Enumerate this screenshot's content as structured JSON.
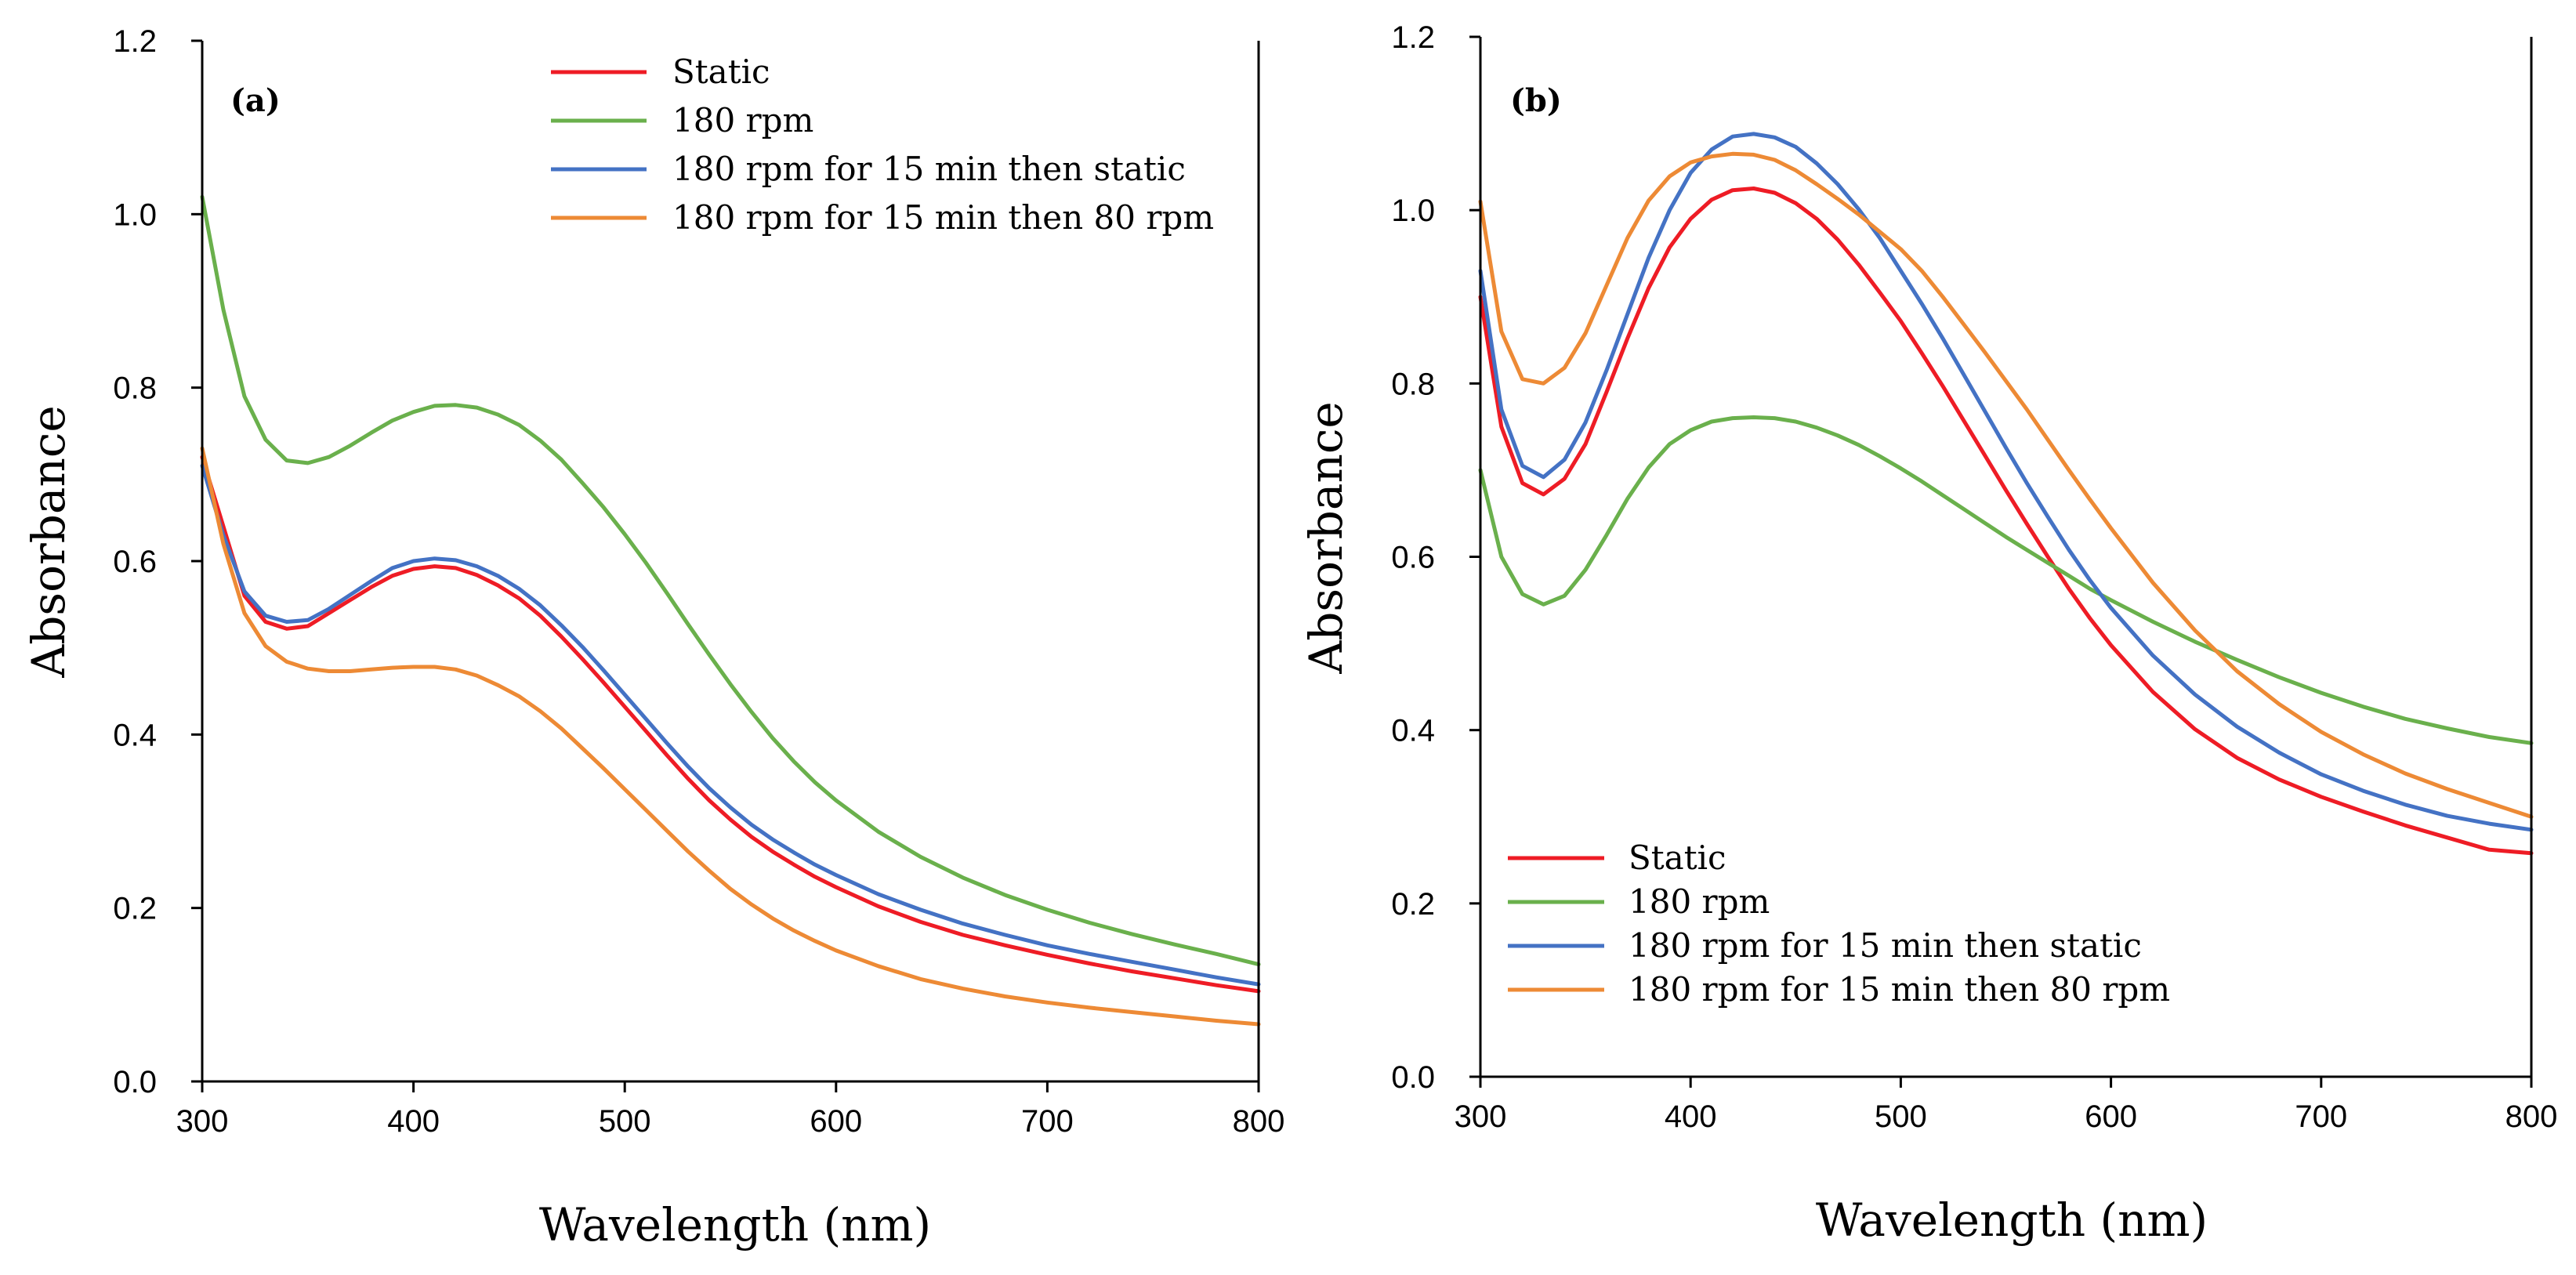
{
  "chart_data": [
    {
      "type": "line",
      "panel_label": "(a)",
      "xlabel": "Wavelength (nm)",
      "ylabel": "Absorbance",
      "xlim": [
        300,
        800
      ],
      "ylim": [
        0.0,
        1.2
      ],
      "xticks": [
        300,
        400,
        500,
        600,
        700,
        800
      ],
      "xtick_labels": [
        "300",
        "400",
        "500",
        "600",
        "700",
        "800"
      ],
      "yticks": [
        0.0,
        0.2,
        0.4,
        0.6,
        0.8,
        1.0,
        1.2
      ],
      "ytick_labels": [
        "0.0",
        "0.2",
        "0.4",
        "0.6",
        "0.8",
        "1.0",
        "1.2"
      ],
      "grid": false,
      "legend_position": "top-right",
      "x": [
        300,
        310,
        320,
        330,
        340,
        350,
        360,
        370,
        380,
        390,
        400,
        410,
        420,
        430,
        440,
        450,
        460,
        470,
        480,
        490,
        500,
        510,
        520,
        530,
        540,
        550,
        560,
        570,
        580,
        590,
        600,
        620,
        640,
        660,
        680,
        700,
        720,
        740,
        760,
        780,
        800
      ],
      "series": [
        {
          "name": "Static",
          "color": "#ee1c25",
          "values": [
            0.72,
            0.64,
            0.56,
            0.53,
            0.522,
            0.525,
            0.54,
            0.555,
            0.57,
            0.583,
            0.591,
            0.594,
            0.592,
            0.584,
            0.572,
            0.557,
            0.537,
            0.513,
            0.487,
            0.46,
            0.432,
            0.404,
            0.376,
            0.349,
            0.324,
            0.302,
            0.282,
            0.265,
            0.25,
            0.236,
            0.224,
            0.202,
            0.184,
            0.169,
            0.157,
            0.146,
            0.136,
            0.127,
            0.119,
            0.111,
            0.104
          ]
        },
        {
          "name": "180 rpm",
          "color": "#6ab04c",
          "values": [
            1.02,
            0.89,
            0.79,
            0.74,
            0.716,
            0.713,
            0.72,
            0.733,
            0.748,
            0.762,
            0.772,
            0.779,
            0.78,
            0.777,
            0.769,
            0.757,
            0.739,
            0.717,
            0.69,
            0.662,
            0.631,
            0.598,
            0.563,
            0.527,
            0.492,
            0.458,
            0.426,
            0.396,
            0.369,
            0.345,
            0.324,
            0.288,
            0.259,
            0.235,
            0.215,
            0.198,
            0.183,
            0.17,
            0.158,
            0.147,
            0.135
          ]
        },
        {
          "name": "180 rpm for 15 min then static",
          "color": "#4472c4",
          "values": [
            0.71,
            0.63,
            0.565,
            0.537,
            0.53,
            0.532,
            0.545,
            0.561,
            0.577,
            0.592,
            0.6,
            0.603,
            0.601,
            0.594,
            0.583,
            0.568,
            0.549,
            0.526,
            0.501,
            0.474,
            0.446,
            0.418,
            0.39,
            0.363,
            0.338,
            0.316,
            0.296,
            0.279,
            0.264,
            0.25,
            0.238,
            0.216,
            0.198,
            0.182,
            0.169,
            0.157,
            0.147,
            0.138,
            0.129,
            0.12,
            0.112
          ]
        },
        {
          "name": "180 rpm for 15 min then 80 rpm",
          "color": "#ed8a35",
          "values": [
            0.73,
            0.62,
            0.54,
            0.502,
            0.484,
            0.476,
            0.473,
            0.473,
            0.475,
            0.477,
            0.478,
            0.478,
            0.475,
            0.468,
            0.457,
            0.444,
            0.427,
            0.407,
            0.384,
            0.361,
            0.337,
            0.313,
            0.289,
            0.265,
            0.243,
            0.222,
            0.204,
            0.188,
            0.174,
            0.162,
            0.151,
            0.133,
            0.118,
            0.107,
            0.098,
            0.091,
            0.085,
            0.08,
            0.075,
            0.07,
            0.066
          ]
        }
      ]
    },
    {
      "type": "line",
      "panel_label": "(b)",
      "xlabel": "Wavelength (nm)",
      "ylabel": "Absorbance",
      "xlim": [
        300,
        800
      ],
      "ylim": [
        0.0,
        1.2
      ],
      "xticks": [
        300,
        400,
        500,
        600,
        700,
        800
      ],
      "xtick_labels": [
        "300",
        "400",
        "500",
        "600",
        "700",
        "800"
      ],
      "yticks": [
        0.0,
        0.2,
        0.4,
        0.6,
        0.8,
        1.0,
        1.2
      ],
      "ytick_labels": [
        "0.0",
        "0.2",
        "0.4",
        "0.6",
        "0.8",
        "1.0",
        "1.2"
      ],
      "grid": false,
      "legend_position": "bottom-left",
      "x": [
        300,
        310,
        320,
        330,
        340,
        350,
        360,
        370,
        380,
        390,
        400,
        410,
        420,
        430,
        440,
        450,
        460,
        470,
        480,
        490,
        500,
        510,
        520,
        530,
        540,
        550,
        560,
        570,
        580,
        590,
        600,
        620,
        640,
        660,
        680,
        700,
        720,
        740,
        760,
        780,
        800
      ],
      "series": [
        {
          "name": "Static",
          "color": "#ee1c25",
          "values": [
            0.9,
            0.75,
            0.685,
            0.672,
            0.69,
            0.73,
            0.79,
            0.852,
            0.91,
            0.957,
            0.99,
            1.012,
            1.023,
            1.025,
            1.02,
            1.008,
            0.99,
            0.966,
            0.937,
            0.905,
            0.872,
            0.835,
            0.797,
            0.757,
            0.717,
            0.677,
            0.638,
            0.6,
            0.563,
            0.529,
            0.498,
            0.444,
            0.401,
            0.368,
            0.343,
            0.323,
            0.306,
            0.29,
            0.276,
            0.262,
            0.258
          ]
        },
        {
          "name": "180 rpm",
          "color": "#6ab04c",
          "values": [
            0.7,
            0.6,
            0.557,
            0.545,
            0.555,
            0.585,
            0.625,
            0.667,
            0.703,
            0.73,
            0.746,
            0.756,
            0.76,
            0.761,
            0.76,
            0.756,
            0.749,
            0.74,
            0.729,
            0.716,
            0.702,
            0.687,
            0.671,
            0.655,
            0.639,
            0.623,
            0.608,
            0.593,
            0.578,
            0.563,
            0.55,
            0.525,
            0.502,
            0.481,
            0.461,
            0.443,
            0.427,
            0.413,
            0.402,
            0.392,
            0.385
          ]
        },
        {
          "name": "180 rpm for 15 min then static",
          "color": "#4472c4",
          "values": [
            0.93,
            0.77,
            0.705,
            0.692,
            0.712,
            0.755,
            0.815,
            0.88,
            0.945,
            1.0,
            1.043,
            1.07,
            1.085,
            1.088,
            1.084,
            1.073,
            1.054,
            1.03,
            1.001,
            0.968,
            0.93,
            0.892,
            0.852,
            0.81,
            0.768,
            0.726,
            0.685,
            0.646,
            0.608,
            0.573,
            0.541,
            0.486,
            0.441,
            0.404,
            0.374,
            0.349,
            0.33,
            0.314,
            0.301,
            0.292,
            0.285
          ]
        },
        {
          "name": "180 rpm for 15 min then 80 rpm",
          "color": "#ed8a35",
          "values": [
            1.01,
            0.86,
            0.805,
            0.8,
            0.818,
            0.858,
            0.913,
            0.968,
            1.011,
            1.039,
            1.055,
            1.062,
            1.065,
            1.064,
            1.058,
            1.046,
            1.03,
            1.013,
            0.995,
            0.975,
            0.955,
            0.93,
            0.9,
            0.868,
            0.836,
            0.803,
            0.77,
            0.735,
            0.7,
            0.666,
            0.633,
            0.57,
            0.515,
            0.468,
            0.43,
            0.398,
            0.372,
            0.35,
            0.332,
            0.316,
            0.3
          ]
        }
      ]
    }
  ]
}
